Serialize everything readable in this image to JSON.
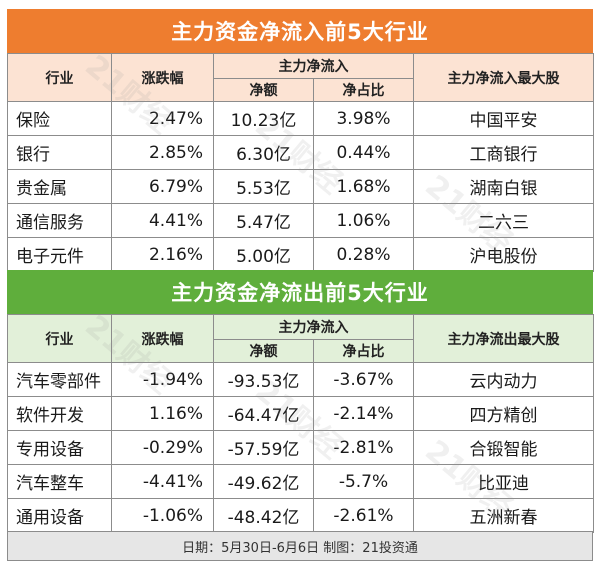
{
  "inflow": {
    "title": "主力资金净流入前5大行业",
    "headers": {
      "industry": "行业",
      "change": "涨跌幅",
      "main_net": "主力净流入",
      "net_amount": "净额",
      "net_ratio": "净占比",
      "top_stock": "主力净流入最大股"
    },
    "rows": [
      {
        "industry": "保险",
        "change": "2.47%",
        "net_amount": "10.23亿",
        "net_ratio": "3.98%",
        "top_stock": "中国平安"
      },
      {
        "industry": "银行",
        "change": "2.85%",
        "net_amount": "6.30亿",
        "net_ratio": "0.44%",
        "top_stock": "工商银行"
      },
      {
        "industry": "贵金属",
        "change": "6.79%",
        "net_amount": "5.53亿",
        "net_ratio": "1.68%",
        "top_stock": "湖南白银"
      },
      {
        "industry": "通信服务",
        "change": "4.41%",
        "net_amount": "5.47亿",
        "net_ratio": "1.06%",
        "top_stock": "二六三"
      },
      {
        "industry": "电子元件",
        "change": "2.16%",
        "net_amount": "5.00亿",
        "net_ratio": "0.28%",
        "top_stock": "沪电股份"
      }
    ]
  },
  "outflow": {
    "title": "主力资金净流出前5大行业",
    "headers": {
      "industry": "行业",
      "change": "涨跌幅",
      "main_net": "主力净流入",
      "net_amount": "净额",
      "net_ratio": "净占比",
      "top_stock": "主力净流出最大股"
    },
    "rows": [
      {
        "industry": "汽车零部件",
        "change": "-1.94%",
        "net_amount": "-93.53亿",
        "net_ratio": "-3.67%",
        "top_stock": "云内动力"
      },
      {
        "industry": "软件开发",
        "change": "1.16%",
        "net_amount": "-64.47亿",
        "net_ratio": "-2.14%",
        "top_stock": "四方精创"
      },
      {
        "industry": "专用设备",
        "change": "-0.29%",
        "net_amount": "-57.59亿",
        "net_ratio": "-2.81%",
        "top_stock": "合锻智能"
      },
      {
        "industry": "汽车整车",
        "change": "-4.41%",
        "net_amount": "-49.62亿",
        "net_ratio": "-5.7%",
        "top_stock": "比亚迪"
      },
      {
        "industry": "通用设备",
        "change": "-1.06%",
        "net_amount": "-48.42亿",
        "net_ratio": "-2.61%",
        "top_stock": "五洲新春"
      }
    ]
  },
  "footer": "日期：5月30日-6月6日  制图：21投资通",
  "watermark": "21财经",
  "colors": {
    "inflow_banner": "#ee7d2f",
    "inflow_header": "#fce3d3",
    "outflow_banner": "#5fae3c",
    "outflow_header": "#e2f0d9",
    "footer_bg": "#e6e6e6"
  }
}
